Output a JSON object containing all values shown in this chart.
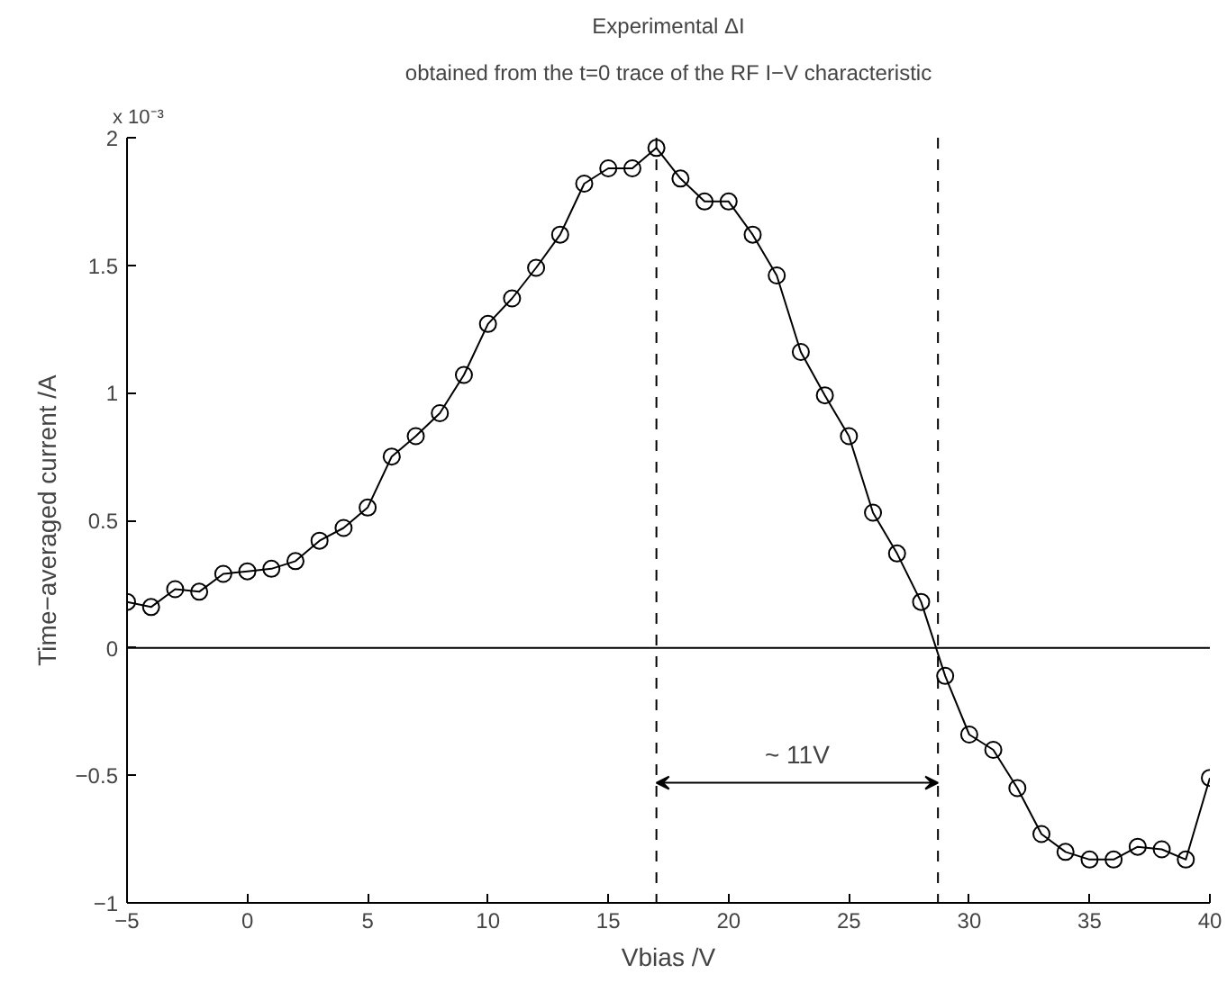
{
  "chart_data": {
    "type": "line",
    "title": "Experimental ΔI",
    "subtitle": "obtained from the t=0 trace of the RF I−V characteristic",
    "xlabel": "Vbias /V",
    "ylabel": "Time−averaged current /A",
    "x": [
      -5,
      -4,
      -3,
      -2,
      -1,
      0,
      1,
      2,
      3,
      4,
      5,
      6,
      7,
      8,
      9,
      10,
      11,
      12,
      13,
      14,
      15,
      16,
      17,
      18,
      19,
      20,
      21,
      22,
      23,
      24,
      25,
      26,
      27,
      28,
      29,
      30,
      31,
      32,
      33,
      34,
      35,
      36,
      37,
      38,
      39,
      40
    ],
    "series": [
      {
        "color": "#000000",
        "values": [
          0.18,
          0.16,
          0.23,
          0.22,
          0.29,
          0.3,
          0.31,
          0.34,
          0.42,
          0.47,
          0.55,
          0.75,
          0.83,
          0.92,
          1.07,
          1.27,
          1.37,
          1.49,
          1.62,
          1.82,
          1.88,
          1.88,
          1.96,
          1.84,
          1.75,
          1.75,
          1.62,
          1.46,
          1.16,
          0.99,
          0.83,
          0.53,
          0.37,
          0.18,
          -0.11,
          -0.34,
          -0.4,
          -0.55,
          -0.73,
          -0.8,
          -0.83,
          -0.83,
          -0.78,
          -0.79,
          -0.83,
          -0.51
        ]
      }
    ],
    "xlim": [
      -5,
      40
    ],
    "ylim": [
      -1,
      2
    ],
    "xticks": [
      -5,
      0,
      5,
      10,
      15,
      20,
      25,
      30,
      35,
      40
    ],
    "yticks": [
      -1,
      -0.5,
      0,
      0.5,
      1,
      1.5,
      2
    ],
    "ref_lines": [
      {
        "axis": "y",
        "value": 0,
        "label": null,
        "color": "#000000",
        "line_style": "solid"
      },
      {
        "axis": "x",
        "value": 17,
        "label": null,
        "color": "#000000",
        "line_style": "dashed"
      },
      {
        "axis": "x",
        "value": 28.7,
        "label": null,
        "color": "#000000",
        "line_style": "dashed"
      }
    ],
    "annotations": [
      "x 10⁻³",
      "~ 11V"
    ],
    "grid": false,
    "marker": "circle",
    "line_style": "solid"
  }
}
